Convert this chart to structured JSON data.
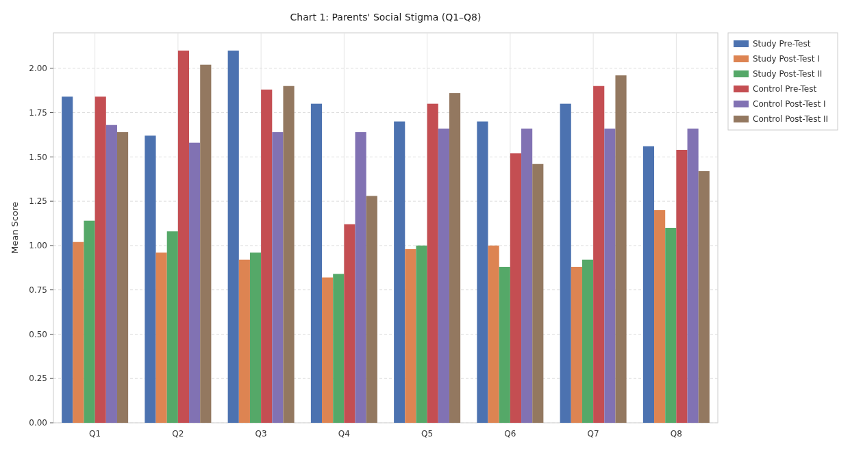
{
  "chart_data": {
    "type": "bar",
    "title": "Chart 1: Parents' Social Stigma (Q1–Q8)",
    "ylabel": "Mean Score",
    "categories": [
      "Q1",
      "Q2",
      "Q3",
      "Q4",
      "Q5",
      "Q6",
      "Q7",
      "Q8"
    ],
    "series": [
      {
        "name": "Study Pre-Test",
        "color": "#4c72b0",
        "values": [
          1.84,
          1.62,
          2.1,
          1.8,
          1.7,
          1.7,
          1.8,
          1.56
        ]
      },
      {
        "name": "Study Post-Test I",
        "color": "#dd8452",
        "values": [
          1.02,
          0.96,
          0.92,
          0.82,
          0.98,
          1.0,
          0.88,
          1.2
        ]
      },
      {
        "name": "Study Post-Test II",
        "color": "#55a868",
        "values": [
          1.14,
          1.08,
          0.96,
          0.84,
          1.0,
          0.88,
          0.92,
          1.1
        ]
      },
      {
        "name": "Control Pre-Test",
        "color": "#c44e52",
        "values": [
          1.84,
          2.1,
          1.88,
          1.12,
          1.8,
          1.52,
          1.9,
          1.54
        ]
      },
      {
        "name": "Control Post-Test I",
        "color": "#8172b3",
        "values": [
          1.68,
          1.58,
          1.64,
          1.64,
          1.66,
          1.66,
          1.66,
          1.66
        ]
      },
      {
        "name": "Control Post-Test II",
        "color": "#937860",
        "values": [
          1.64,
          2.02,
          1.9,
          1.28,
          1.86,
          1.46,
          1.96,
          1.42
        ]
      }
    ],
    "ylim": [
      0,
      2.2
    ],
    "yticks": [
      {
        "value": 0,
        "label": "0.00"
      },
      {
        "value": 0.25,
        "label": "0.25"
      },
      {
        "value": 0.5,
        "label": "0.50"
      },
      {
        "value": 0.75,
        "label": "0.75"
      },
      {
        "value": 1,
        "label": "1.00"
      },
      {
        "value": 1.25,
        "label": "1.25"
      },
      {
        "value": 1.5,
        "label": "1.50"
      },
      {
        "value": 1.75,
        "label": "1.75"
      },
      {
        "value": 2,
        "label": "2.00"
      }
    ],
    "grid": true,
    "legend": "right"
  }
}
